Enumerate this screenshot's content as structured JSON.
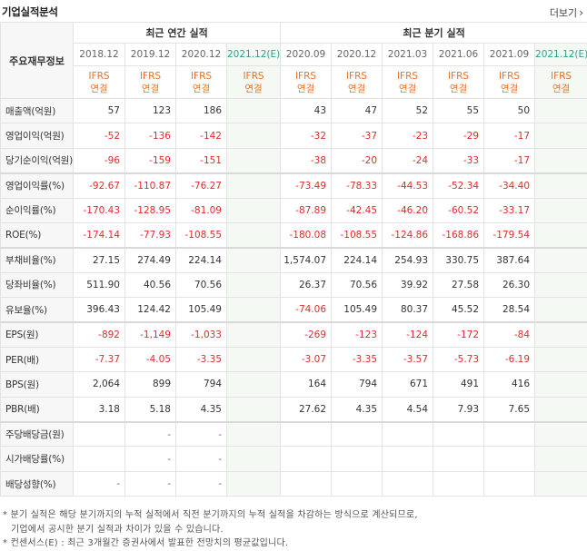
{
  "header": {
    "title": "기업실적분석",
    "more_label": "더보기"
  },
  "table": {
    "corner_label": "주요재무정보",
    "annual_group_label": "최근 연간 실적",
    "quarter_group_label": "최근 분기 실적",
    "periods": [
      "2018.12",
      "2019.12",
      "2020.12",
      "2021.12(E)",
      "2020.09",
      "2020.12",
      "2021.03",
      "2021.06",
      "2021.09",
      "2021.12(E)"
    ],
    "ifrs_line1": "IFRS",
    "ifrs_line2": "연결",
    "rows": [
      {
        "label": "매출액(억원)",
        "values": [
          "57",
          "123",
          "186",
          "",
          "43",
          "47",
          "52",
          "55",
          "50",
          ""
        ]
      },
      {
        "label": "영업이익(억원)",
        "values": [
          "-52",
          "-136",
          "-142",
          "",
          "-32",
          "-37",
          "-23",
          "-29",
          "-17",
          ""
        ]
      },
      {
        "label": "당기순이익(억원)",
        "values": [
          "-96",
          "-159",
          "-151",
          "",
          "-38",
          "-20",
          "-24",
          "-33",
          "-17",
          ""
        ]
      },
      {
        "label": "영업이익률(%)",
        "values": [
          "-92.67",
          "-110.87",
          "-76.27",
          "",
          "-73.49",
          "-78.33",
          "-44.53",
          "-52.34",
          "-34.40",
          ""
        ]
      },
      {
        "label": "순이익률(%)",
        "values": [
          "-170.43",
          "-128.95",
          "-81.09",
          "",
          "-87.89",
          "-42.45",
          "-46.20",
          "-60.52",
          "-33.17",
          ""
        ]
      },
      {
        "label": "ROE(%)",
        "values": [
          "-174.14",
          "-77.93",
          "-108.55",
          "",
          "-180.08",
          "-108.55",
          "-124.86",
          "-168.86",
          "-179.54",
          ""
        ]
      },
      {
        "label": "부채비율(%)",
        "values": [
          "27.15",
          "274.49",
          "224.14",
          "",
          "1,574.07",
          "224.14",
          "254.93",
          "330.75",
          "387.64",
          ""
        ]
      },
      {
        "label": "당좌비율(%)",
        "values": [
          "511.90",
          "40.56",
          "70.56",
          "",
          "26.37",
          "70.56",
          "39.92",
          "27.58",
          "26.30",
          ""
        ]
      },
      {
        "label": "유보율(%)",
        "values": [
          "396.43",
          "124.42",
          "105.49",
          "",
          "-74.06",
          "105.49",
          "80.37",
          "45.52",
          "28.54",
          ""
        ]
      },
      {
        "label": "EPS(원)",
        "values": [
          "-892",
          "-1,149",
          "-1,033",
          "",
          "-269",
          "-123",
          "-124",
          "-172",
          "-84",
          ""
        ]
      },
      {
        "label": "PER(배)",
        "values": [
          "-7.37",
          "-4.05",
          "-3.35",
          "",
          "-3.07",
          "-3.35",
          "-3.57",
          "-5.73",
          "-6.19",
          ""
        ]
      },
      {
        "label": "BPS(원)",
        "values": [
          "2,064",
          "899",
          "794",
          "",
          "164",
          "794",
          "671",
          "491",
          "416",
          ""
        ]
      },
      {
        "label": "PBR(배)",
        "values": [
          "3.18",
          "5.18",
          "4.35",
          "",
          "27.62",
          "4.35",
          "4.54",
          "7.93",
          "7.65",
          ""
        ]
      },
      {
        "label": "주당배당금(원)",
        "values": [
          "",
          "-",
          "-",
          "",
          "",
          "",
          "",
          "",
          "",
          ""
        ]
      },
      {
        "label": "시가배당률(%)",
        "values": [
          "",
          "-",
          "-",
          "",
          "",
          "",
          "",
          "",
          "",
          ""
        ]
      },
      {
        "label": "배당성향(%)",
        "values": [
          "-",
          "-",
          "-",
          "",
          "",
          "",
          "",
          "",
          "",
          ""
        ]
      }
    ]
  },
  "notes": {
    "line1": "* 분기 실적은 해당 분기까지의 누적 실적에서 직전 분기까지의 누적 실적을 차감하는 방식으로 계산되므로,",
    "line2": "기업에서 공시한 분기 실적과 차이가 있을 수 있습니다.",
    "line3": "* 컨센서스(E) : 최근 3개월간 증권사에서 발표한 전망치의 평균값입니다."
  },
  "colors": {
    "negative": "#e22b2b",
    "ifrs": "#e8732a",
    "estimate_bg": "#f4f9f4",
    "estimate_text": "#2f9f8f",
    "label_bg": "#f7f7f7"
  }
}
